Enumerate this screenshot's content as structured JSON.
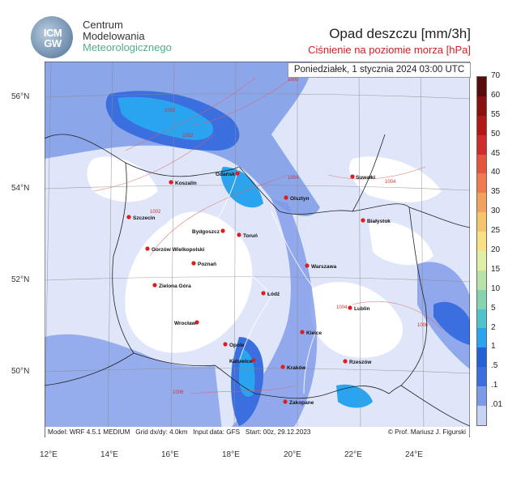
{
  "header": {
    "title": "Opad deszczu [mm/3h]",
    "subtitle": "Ciśnienie na poziomie morza [hPa]"
  },
  "logo": {
    "mark_top": "ICM",
    "mark_bottom": "GW",
    "org_line1": "Centrum",
    "org_line2": "Modelowania",
    "org_line3": "Meteorologicznego"
  },
  "map": {
    "datetime": "Poniedziałek, 1 stycznia 2024 03:00 UTC",
    "lat_labels": [
      "56°N",
      "54°N",
      "52°N",
      "50°N"
    ],
    "lon_labels": [
      "12°E",
      "14°E",
      "16°E",
      "18°E",
      "20°E",
      "22°E",
      "24°E"
    ],
    "isobar_labels": [
      "1000",
      "1002",
      "1002",
      "1002",
      "1004",
      "1004",
      "1004",
      "1006",
      "1006"
    ],
    "cities": [
      {
        "name": "Gdańsk"
      },
      {
        "name": "Suwałki"
      },
      {
        "name": "Koszalin"
      },
      {
        "name": "Olsztyn"
      },
      {
        "name": "Szczecin"
      },
      {
        "name": "Białystok"
      },
      {
        "name": "Bydgoszcz"
      },
      {
        "name": "Toruń"
      },
      {
        "name": "Gorzów Wielkopolski"
      },
      {
        "name": "Poznań"
      },
      {
        "name": "Warszawa"
      },
      {
        "name": "Zielona Góra"
      },
      {
        "name": "Łódź"
      },
      {
        "name": "Lublin"
      },
      {
        "name": "Wrocław"
      },
      {
        "name": "Kielce"
      },
      {
        "name": "Opole"
      },
      {
        "name": "Katowice"
      },
      {
        "name": "Kraków"
      },
      {
        "name": "Rzeszów"
      },
      {
        "name": "Zakopane"
      }
    ]
  },
  "footer": {
    "model": "Model: WRF 4.5.1 MEDIUM",
    "grid": "Grid dx/dy: 4.0km",
    "input": "Input data: GFS",
    "start": "Start: 00z, 29.12.2023",
    "copyright": "© Prof. Mariusz J. Figurski"
  },
  "legend": {
    "labels": [
      "70",
      "60",
      "55",
      "50",
      "45",
      "40",
      "35",
      "30",
      "25",
      "20",
      "15",
      "10",
      "5",
      "2",
      "1",
      ".5",
      ".1",
      ".01"
    ],
    "colors": [
      "#5a0b0b",
      "#8b1010",
      "#b31818",
      "#d22b2b",
      "#e6533f",
      "#ef7b4f",
      "#f3a15f",
      "#f6c46d",
      "#f8e083",
      "#dff0a6",
      "#b8e2aa",
      "#86d3b0",
      "#4fc3cc",
      "#2aa4ee",
      "#2361d8",
      "#3b6fe0",
      "#7d9ae8",
      "#c7d2f4"
    ]
  }
}
